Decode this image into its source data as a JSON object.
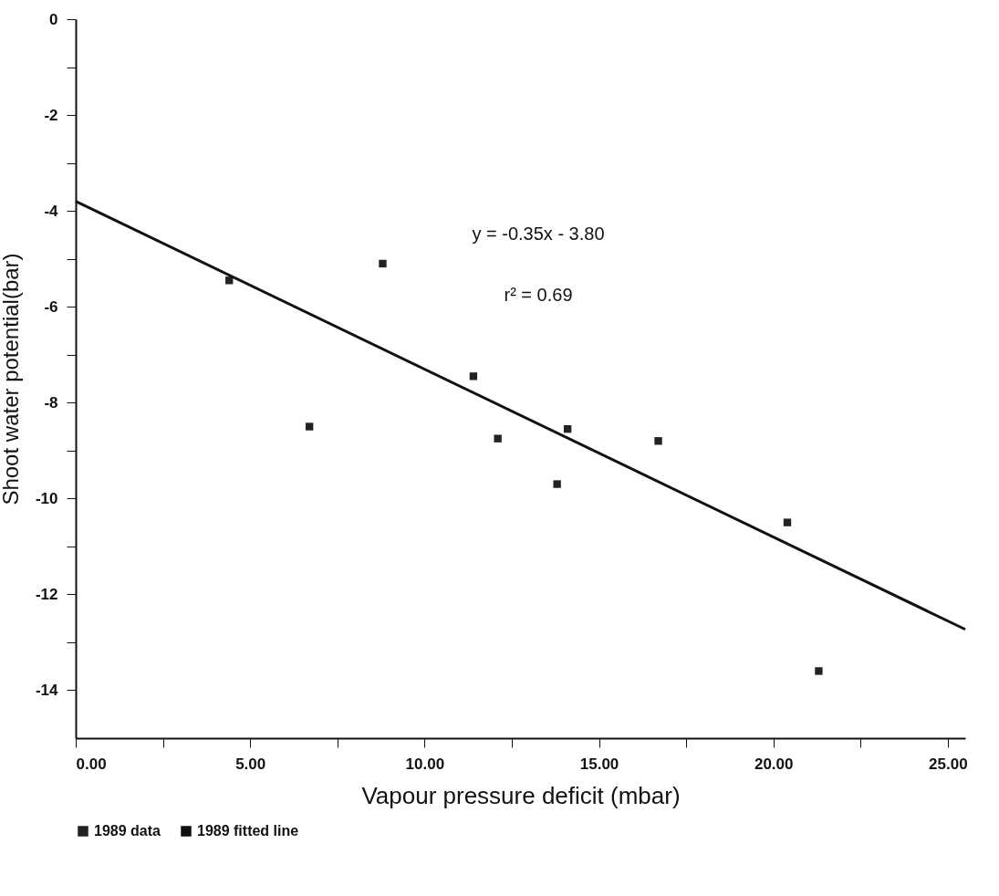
{
  "chart_data": {
    "type": "scatter",
    "xlabel": "Vapour pressure deficit (mbar)",
    "ylabel": "Shoot water potential(bar)",
    "xlim": [
      0,
      25.5
    ],
    "ylim": [
      -15,
      0
    ],
    "xticks": [
      {
        "value": 0,
        "label": "0.00"
      },
      {
        "value": 2.5,
        "label": null
      },
      {
        "value": 5,
        "label": "5.00"
      },
      {
        "value": 7.5,
        "label": null
      },
      {
        "value": 10,
        "label": "10.00"
      },
      {
        "value": 12.5,
        "label": null
      },
      {
        "value": 15,
        "label": "15.00"
      },
      {
        "value": 17.5,
        "label": null
      },
      {
        "value": 20,
        "label": "20.00"
      },
      {
        "value": 22.5,
        "label": null
      },
      {
        "value": 25,
        "label": "25.00"
      }
    ],
    "yticks": [
      -14,
      {
        "value": -13,
        "label": null
      },
      -12,
      {
        "value": -11,
        "label": null
      },
      -10,
      {
        "value": -9,
        "label": null
      },
      -8,
      {
        "value": -7,
        "label": null
      },
      -6,
      {
        "value": -5,
        "label": null
      },
      -4,
      {
        "value": -3,
        "label": null
      },
      -2,
      {
        "value": -1,
        "label": null
      },
      0
    ],
    "series": [
      {
        "name": "1989 data",
        "color": "#222222",
        "marker": "square",
        "x": [
          4.4,
          6.7,
          8.8,
          11.4,
          12.1,
          13.8,
          14.1,
          16.7,
          20.4,
          21.3
        ],
        "values": [
          -5.45,
          -8.5,
          -5.1,
          -7.45,
          -8.75,
          -9.7,
          -8.55,
          -8.8,
          -10.5,
          -13.6
        ]
      },
      {
        "name": "1989 fitted line",
        "type": "line",
        "color": "#111111",
        "line_style": "solid",
        "x": [
          0,
          25.5
        ],
        "values": [
          -3.8,
          -12.73
        ]
      }
    ],
    "annotations": [
      "y = -0.35x - 3.80",
      "r² = 0.69"
    ],
    "legend": "bottom",
    "grid": false
  }
}
